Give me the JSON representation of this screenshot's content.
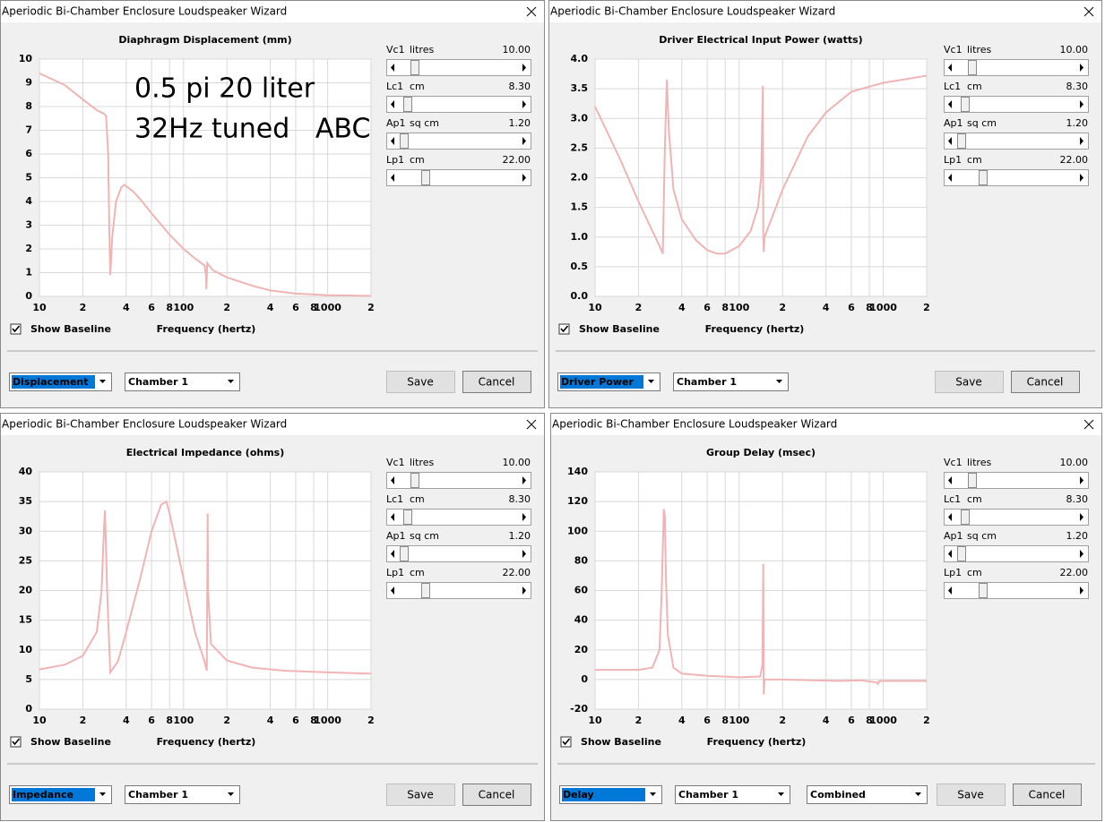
{
  "windows": [
    {
      "title": "Aperiodic Bi-Chamber Enclosure Loudspeaker Wizard",
      "sliders": [
        {
          "name": "Vc1",
          "unit": "litres",
          "value": "10.00"
        },
        {
          "name": "Lc1",
          "unit": "cm",
          "value": "8.30"
        },
        {
          "name": "Ap1",
          "unit": "sq cm",
          "value": "1.20"
        },
        {
          "name": "Lp1",
          "unit": "cm",
          "value": "22.00"
        }
      ],
      "baseline": "Show Baseline",
      "dropdowns": [
        "Displacement",
        "Chamber 1"
      ],
      "buttons": [
        "Save",
        "Cancel"
      ]
    },
    {
      "title": "Aperiodic Bi-Chamber Enclosure Loudspeaker Wizard",
      "sliders": [
        {
          "name": "Vc1",
          "unit": "litres",
          "value": "10.00"
        },
        {
          "name": "Lc1",
          "unit": "cm",
          "value": "8.30"
        },
        {
          "name": "Ap1",
          "unit": "sq cm",
          "value": "1.20"
        },
        {
          "name": "Lp1",
          "unit": "cm",
          "value": "22.00"
        }
      ],
      "baseline": "Show Baseline",
      "dropdowns": [
        "Driver Power",
        "Chamber 1"
      ],
      "buttons": [
        "Save",
        "Cancel"
      ]
    },
    {
      "title": "Aperiodic Bi-Chamber Enclosure Loudspeaker Wizard",
      "sliders": [
        {
          "name": "Vc1",
          "unit": "litres",
          "value": "10.00"
        },
        {
          "name": "Lc1",
          "unit": "cm",
          "value": "8.30"
        },
        {
          "name": "Ap1",
          "unit": "sq cm",
          "value": "1.20"
        },
        {
          "name": "Lp1",
          "unit": "cm",
          "value": "22.00"
        }
      ],
      "baseline": "Show Baseline",
      "dropdowns": [
        "Impedance",
        "Chamber 1"
      ],
      "buttons": [
        "Save",
        "Cancel"
      ]
    },
    {
      "title": "Aperiodic Bi-Chamber Enclosure Loudspeaker Wizard",
      "sliders": [
        {
          "name": "Vc1",
          "unit": "litres",
          "value": "10.00"
        },
        {
          "name": "Lc1",
          "unit": "cm",
          "value": "8.30"
        },
        {
          "name": "Ap1",
          "unit": "sq cm",
          "value": "1.20"
        },
        {
          "name": "Lp1",
          "unit": "cm",
          "value": "22.00"
        }
      ],
      "baseline": "Show Baseline",
      "dropdowns": [
        "Delay",
        "Chamber 1",
        "Combined"
      ],
      "buttons": [
        "Save",
        "Cancel"
      ]
    }
  ],
  "chart_data": [
    {
      "type": "line",
      "title": "Diaphragm Displacement (mm)",
      "x_label": "Frequency (hertz)",
      "xlog": true,
      "grid": true,
      "annotations": [
        "0.5 pi 20 liter",
        "32Hz tuned   ABC"
      ],
      "xlim": [
        10,
        2000
      ],
      "ylim": [
        0,
        10
      ],
      "xticks": [
        10,
        {
          "value": 20,
          "label": "2"
        },
        {
          "value": 40,
          "label": "4"
        },
        {
          "value": 60,
          "label": "6"
        },
        {
          "value": 80,
          "label": "8"
        },
        100,
        {
          "value": 200,
          "label": "2"
        },
        {
          "value": 400,
          "label": "4"
        },
        {
          "value": 600,
          "label": "6"
        },
        {
          "value": 800,
          "label": "8"
        },
        1000,
        {
          "value": 2000,
          "label": "2"
        }
      ],
      "yticks": [
        0,
        1,
        2,
        3,
        4,
        5,
        6,
        7,
        8,
        9,
        10
      ],
      "x": [
        10,
        15,
        20,
        25,
        28,
        29,
        30,
        30.5,
        31,
        32,
        34,
        37,
        39,
        45,
        50,
        60,
        80,
        100,
        120,
        140,
        143,
        144,
        146,
        160,
        200,
        300,
        400,
        600,
        1000,
        2000
      ],
      "series": [
        {
          "color": "#f0b4b4",
          "values": [
            9.4,
            8.9,
            8.3,
            7.85,
            7.7,
            7.6,
            6,
            3,
            0.9,
            2.5,
            4,
            4.6,
            4.7,
            4.4,
            4.1,
            3.5,
            2.6,
            2,
            1.6,
            1.3,
            0.9,
            0.3,
            1.4,
            1.1,
            0.8,
            0.45,
            0.25,
            0.12,
            0.05,
            0.02
          ]
        }
      ]
    },
    {
      "type": "line",
      "title": "Driver Electrical Input Power (watts)",
      "x_label": "Frequency (hertz)",
      "xlog": true,
      "grid": true,
      "xlim": [
        10,
        2000
      ],
      "ylim": [
        0,
        4
      ],
      "xticks": [
        10,
        {
          "value": 20,
          "label": "2"
        },
        {
          "value": 40,
          "label": "4"
        },
        {
          "value": 60,
          "label": "6"
        },
        {
          "value": 80,
          "label": "8"
        },
        100,
        {
          "value": 200,
          "label": "2"
        },
        {
          "value": 400,
          "label": "4"
        },
        {
          "value": 600,
          "label": "6"
        },
        {
          "value": 800,
          "label": "8"
        },
        1000,
        {
          "value": 2000,
          "label": "2"
        }
      ],
      "yticks": [
        {
          "value": 0,
          "label": "0.0"
        },
        0.5,
        {
          "value": 1,
          "label": "1.0"
        },
        1.5,
        {
          "value": 2,
          "label": "2.0"
        },
        2.5,
        {
          "value": 3,
          "label": "3.0"
        },
        3.5,
        {
          "value": 4,
          "label": "4.0"
        }
      ],
      "x": [
        10,
        15,
        20,
        25,
        28,
        29.5,
        30.5,
        31.5,
        32.5,
        35,
        40,
        50,
        60,
        70,
        80,
        100,
        120,
        135,
        142,
        146,
        147,
        148,
        150,
        200,
        300,
        400,
        600,
        1000,
        2000
      ],
      "series": [
        {
          "color": "#f0b4b4",
          "values": [
            3.2,
            2.3,
            1.6,
            1.1,
            0.85,
            0.72,
            2.5,
            3.65,
            2.8,
            1.8,
            1.3,
            0.95,
            0.78,
            0.72,
            0.72,
            0.85,
            1.1,
            1.5,
            2.0,
            3.55,
            1.0,
            0.75,
            1.0,
            1.8,
            2.7,
            3.1,
            3.45,
            3.6,
            3.72
          ]
        }
      ]
    },
    {
      "type": "line",
      "title": "Electrical Impedance (ohms)",
      "x_label": "Frequency (hertz)",
      "xlog": true,
      "grid": true,
      "xlim": [
        10,
        2000
      ],
      "ylim": [
        0,
        40
      ],
      "xticks": [
        10,
        {
          "value": 20,
          "label": "2"
        },
        {
          "value": 40,
          "label": "4"
        },
        {
          "value": 60,
          "label": "6"
        },
        {
          "value": 80,
          "label": "8"
        },
        100,
        {
          "value": 200,
          "label": "2"
        },
        {
          "value": 400,
          "label": "4"
        },
        {
          "value": 600,
          "label": "6"
        },
        {
          "value": 800,
          "label": "8"
        },
        1000,
        {
          "value": 2000,
          "label": "2"
        }
      ],
      "yticks": [
        0,
        5,
        10,
        15,
        20,
        25,
        30,
        35,
        40
      ],
      "x": [
        10,
        15,
        20,
        25,
        27,
        28,
        28.5,
        29.5,
        31,
        35,
        40,
        50,
        60,
        70,
        76,
        80,
        100,
        120,
        140,
        145,
        146,
        147,
        148,
        155,
        200,
        300,
        500,
        1000,
        2000
      ],
      "series": [
        {
          "color": "#f0b4b4",
          "values": [
            6.7,
            7.5,
            9,
            13,
            20,
            30,
            33.5,
            20,
            6.2,
            8,
            13,
            22,
            30,
            34.5,
            35,
            33,
            22,
            13,
            8,
            6.5,
            20,
            33,
            20,
            11,
            8.2,
            7,
            6.5,
            6.2,
            6
          ]
        }
      ]
    },
    {
      "type": "line",
      "title": "Group Delay (msec)",
      "x_label": "Frequency (hertz)",
      "xlog": true,
      "grid": true,
      "xlim": [
        10,
        2000
      ],
      "ylim": [
        -20,
        140
      ],
      "xticks": [
        10,
        {
          "value": 20,
          "label": "2"
        },
        {
          "value": 40,
          "label": "4"
        },
        {
          "value": 60,
          "label": "6"
        },
        {
          "value": 80,
          "label": "8"
        },
        100,
        {
          "value": 200,
          "label": "2"
        },
        {
          "value": 400,
          "label": "4"
        },
        {
          "value": 600,
          "label": "6"
        },
        {
          "value": 800,
          "label": "8"
        },
        1000,
        {
          "value": 2000,
          "label": "2"
        }
      ],
      "yticks": [
        -20,
        0,
        20,
        40,
        60,
        80,
        100,
        120,
        140
      ],
      "x": [
        10,
        20,
        25,
        28,
        29,
        30,
        30.5,
        31,
        32,
        35,
        40,
        60,
        100,
        140,
        145,
        147,
        148,
        150,
        200,
        500,
        700,
        900,
        920,
        940,
        1000,
        2000
      ],
      "series": [
        {
          "color": "#f0b4b4",
          "values": [
            6.5,
            6.5,
            8,
            20,
            60,
            115,
            110,
            70,
            30,
            8,
            4,
            2.5,
            1.5,
            2,
            10,
            78,
            -10,
            0,
            0,
            -1,
            -0.5,
            -2,
            -3,
            -1,
            -1,
            -1
          ]
        }
      ]
    }
  ]
}
